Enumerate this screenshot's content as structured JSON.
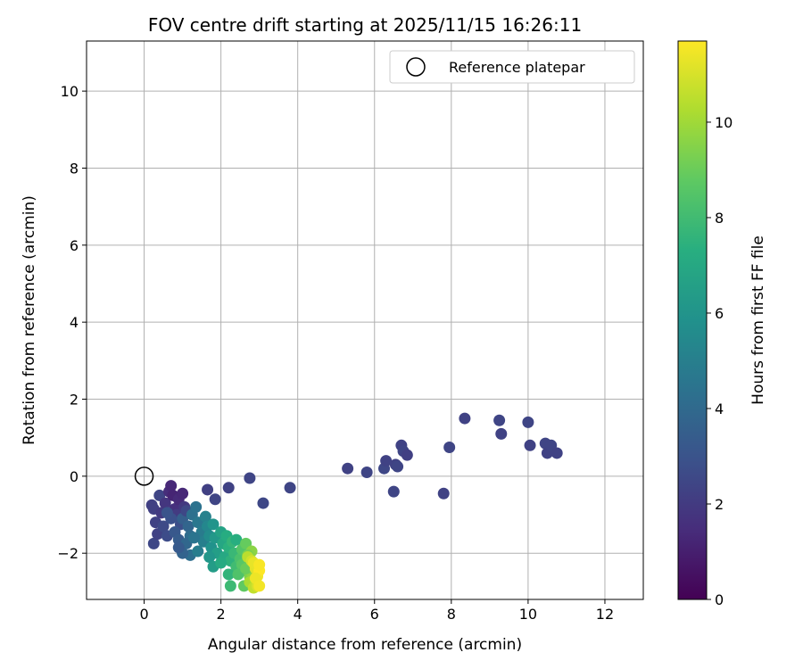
{
  "chart_data": {
    "type": "scatter",
    "title": "FOV centre drift starting at 2025/11/15 16:26:11",
    "xlabel": "Angular distance from reference (arcmin)",
    "ylabel": "Rotation from reference (arcmin)",
    "xlim": [
      -1.5,
      13
    ],
    "ylim": [
      -3.2,
      11.3
    ],
    "xticks": [
      0,
      2,
      4,
      6,
      8,
      10,
      12
    ],
    "yticks": [
      -2,
      0,
      2,
      4,
      6,
      8,
      10
    ],
    "grid": true,
    "legend": {
      "placement": "top-right",
      "entries": [
        "Reference platepar"
      ]
    },
    "reference_point": {
      "x": 0,
      "y": 0,
      "label": "Reference platepar"
    },
    "colorbar": {
      "label": "Hours from first FF file",
      "colormap": "viridis",
      "range": [
        0,
        11.7
      ],
      "ticks": [
        0,
        2,
        4,
        6,
        8,
        10
      ]
    },
    "points": [
      [
        0.2,
        -0.75,
        2.2
      ],
      [
        0.25,
        -0.85,
        2.2
      ],
      [
        0.3,
        -1.2,
        2.3
      ],
      [
        0.25,
        -1.75,
        2.5
      ],
      [
        0.35,
        -1.5,
        2.3
      ],
      [
        0.4,
        -0.5,
        2.4
      ],
      [
        0.45,
        -0.95,
        2.0
      ],
      [
        0.5,
        -1.3,
        2.6
      ],
      [
        0.55,
        -0.7,
        1.8
      ],
      [
        0.6,
        -1.55,
        2.7
      ],
      [
        0.65,
        -0.4,
        1.5
      ],
      [
        0.7,
        -0.25,
        1.3
      ],
      [
        0.75,
        -0.5,
        1.2
      ],
      [
        0.8,
        -0.85,
        1.6
      ],
      [
        0.85,
        -1.0,
        2.0
      ],
      [
        0.9,
        -0.6,
        1.4
      ],
      [
        0.95,
        -1.25,
        2.8
      ],
      [
        1.0,
        -0.45,
        1.3
      ],
      [
        1.05,
        -0.8,
        1.9
      ],
      [
        0.7,
        -1.1,
        2.9
      ],
      [
        0.6,
        -0.95,
        3.0
      ],
      [
        0.8,
        -1.45,
        3.2
      ],
      [
        0.9,
        -1.65,
        3.4
      ],
      [
        1.0,
        -1.1,
        3.5
      ],
      [
        1.1,
        -0.9,
        2.5
      ],
      [
        1.15,
        -1.3,
        3.8
      ],
      [
        1.2,
        -1.55,
        4.1
      ],
      [
        1.25,
        -1.0,
        4.3
      ],
      [
        1.35,
        -0.8,
        4.4
      ],
      [
        1.4,
        -1.2,
        4.6
      ],
      [
        1.5,
        -1.45,
        4.8
      ],
      [
        1.55,
        -1.7,
        5.0
      ],
      [
        1.6,
        -1.05,
        5.1
      ],
      [
        1.1,
        -1.75,
        3.9
      ],
      [
        1.2,
        -2.05,
        4.2
      ],
      [
        1.0,
        -2.0,
        3.7
      ],
      [
        0.9,
        -1.85,
        3.3
      ],
      [
        1.3,
        -1.6,
        4.5
      ],
      [
        1.4,
        -1.95,
        4.9
      ],
      [
        1.65,
        -1.3,
        5.4
      ],
      [
        1.7,
        -1.55,
        5.6
      ],
      [
        1.75,
        -1.85,
        5.9
      ],
      [
        1.8,
        -1.25,
        6.0
      ],
      [
        1.85,
        -1.6,
        6.2
      ],
      [
        1.9,
        -2.0,
        6.5
      ],
      [
        2.0,
        -1.45,
        6.7
      ],
      [
        2.05,
        -1.75,
        6.9
      ],
      [
        2.1,
        -2.1,
        7.0
      ],
      [
        2.15,
        -1.55,
        7.2
      ],
      [
        2.2,
        -1.85,
        7.4
      ],
      [
        2.25,
        -2.2,
        7.5
      ],
      [
        2.3,
        -1.7,
        7.7
      ],
      [
        2.35,
        -2.0,
        7.8
      ],
      [
        2.4,
        -2.35,
        8.0
      ],
      [
        1.7,
        -2.1,
        6.1
      ],
      [
        1.8,
        -2.35,
        6.4
      ],
      [
        2.0,
        -2.25,
        7.1
      ],
      [
        2.2,
        -2.55,
        7.6
      ],
      [
        2.25,
        -2.85,
        7.9
      ],
      [
        2.4,
        -1.65,
        7.3
      ],
      [
        2.5,
        -2.15,
        8.3
      ],
      [
        2.55,
        -1.9,
        8.5
      ],
      [
        2.6,
        -2.45,
        8.7
      ],
      [
        2.65,
        -1.75,
        8.9
      ],
      [
        2.7,
        -2.2,
        9.1
      ],
      [
        2.75,
        -2.6,
        9.4
      ],
      [
        2.8,
        -1.95,
        9.6
      ],
      [
        2.85,
        -2.35,
        9.8
      ],
      [
        2.9,
        -2.7,
        10.0
      ],
      [
        2.55,
        -2.3,
        8.6
      ],
      [
        2.45,
        -2.55,
        8.4
      ],
      [
        2.6,
        -2.85,
        8.8
      ],
      [
        2.7,
        -2.05,
        9.3
      ],
      [
        2.8,
        -2.5,
        9.7
      ],
      [
        2.65,
        -2.4,
        9.0
      ],
      [
        2.75,
        -2.75,
        10.2
      ],
      [
        2.85,
        -2.9,
        10.6
      ],
      [
        2.95,
        -2.85,
        11.0
      ],
      [
        2.7,
        -2.1,
        10.5
      ],
      [
        2.8,
        -2.2,
        10.9
      ],
      [
        2.9,
        -2.4,
        11.2
      ],
      [
        2.95,
        -2.6,
        11.5
      ],
      [
        3.0,
        -2.45,
        11.7
      ],
      [
        2.85,
        -2.25,
        11.3
      ],
      [
        3.0,
        -2.3,
        11.6
      ],
      [
        2.9,
        -2.65,
        11.4
      ],
      [
        3.0,
        -2.85,
        11.5
      ],
      [
        1.65,
        -0.35,
        2.2
      ],
      [
        1.85,
        -0.6,
        2.4
      ],
      [
        2.2,
        -0.3,
        2.3
      ],
      [
        2.75,
        -0.05,
        2.4
      ],
      [
        3.1,
        -0.7,
        2.5
      ],
      [
        3.8,
        -0.3,
        2.4
      ],
      [
        5.3,
        0.2,
        2.3
      ],
      [
        5.8,
        0.1,
        2.4
      ],
      [
        6.25,
        0.2,
        2.5
      ],
      [
        6.3,
        0.4,
        2.3
      ],
      [
        6.5,
        -0.4,
        2.4
      ],
      [
        6.55,
        0.3,
        2.3
      ],
      [
        6.6,
        0.25,
        2.4
      ],
      [
        6.7,
        0.8,
        2.3
      ],
      [
        6.75,
        0.65,
        2.4
      ],
      [
        6.85,
        0.55,
        2.2
      ],
      [
        7.8,
        -0.45,
        2.3
      ],
      [
        7.95,
        0.75,
        2.4
      ],
      [
        8.35,
        1.5,
        2.3
      ],
      [
        9.25,
        1.45,
        2.4
      ],
      [
        9.3,
        1.1,
        2.3
      ],
      [
        10.0,
        1.4,
        2.4
      ],
      [
        10.05,
        0.8,
        2.3
      ],
      [
        10.45,
        0.85,
        2.4
      ],
      [
        10.5,
        0.6,
        2.3
      ],
      [
        10.6,
        0.8,
        2.4
      ],
      [
        10.75,
        0.6,
        2.3
      ]
    ]
  }
}
